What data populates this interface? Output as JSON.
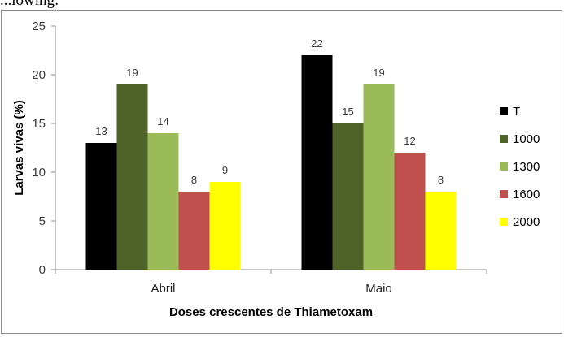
{
  "header": {
    "text": "...lowing:"
  },
  "chart_data": {
    "type": "bar",
    "title": "",
    "xlabel": "Doses crescentes de Thiametoxam",
    "ylabel": "Larvas vivas (%)",
    "ylim": [
      0,
      25
    ],
    "yticks": [
      "0",
      "5",
      "10",
      "15",
      "20",
      "25"
    ],
    "categories": [
      "Abril",
      "Maio"
    ],
    "series": [
      {
        "name": "T",
        "color": "#000000",
        "values": [
          13,
          22
        ]
      },
      {
        "name": "1000",
        "color": "#4f6228",
        "values": [
          19,
          15
        ]
      },
      {
        "name": "1300",
        "color": "#9bbb59",
        "values": [
          14,
          19
        ]
      },
      {
        "name": "1600",
        "color": "#c0504d",
        "values": [
          8,
          12
        ]
      },
      {
        "name": "2000",
        "color": "#ffff00",
        "values": [
          9,
          8
        ]
      }
    ],
    "grid": false,
    "legend_position": "right"
  }
}
